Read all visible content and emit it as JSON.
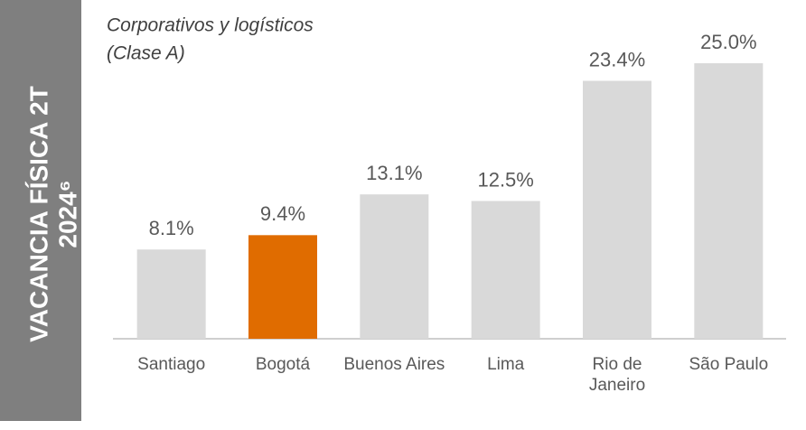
{
  "chart_data": {
    "type": "bar",
    "title": [
      "VACANCIA FÍSICA 2T",
      "2024⁶"
    ],
    "subtitle": [
      "Corporativos y logísticos",
      "(Clase A)"
    ],
    "categories": [
      "Santiago",
      "Bogotá",
      "Buenos Aires",
      "Lima",
      "Rio de Janeiro",
      "São Paulo"
    ],
    "values": [
      8.1,
      9.4,
      13.1,
      12.5,
      23.4,
      25.0
    ],
    "value_labels": [
      "8.1%",
      "9.4%",
      "13.1%",
      "12.5%",
      "23.4%",
      "25.0%"
    ],
    "colors": [
      "#d9d9d9",
      "#e06c00",
      "#d9d9d9",
      "#d9d9d9",
      "#d9d9d9",
      "#d9d9d9"
    ],
    "ylim": [
      0,
      25
    ]
  }
}
